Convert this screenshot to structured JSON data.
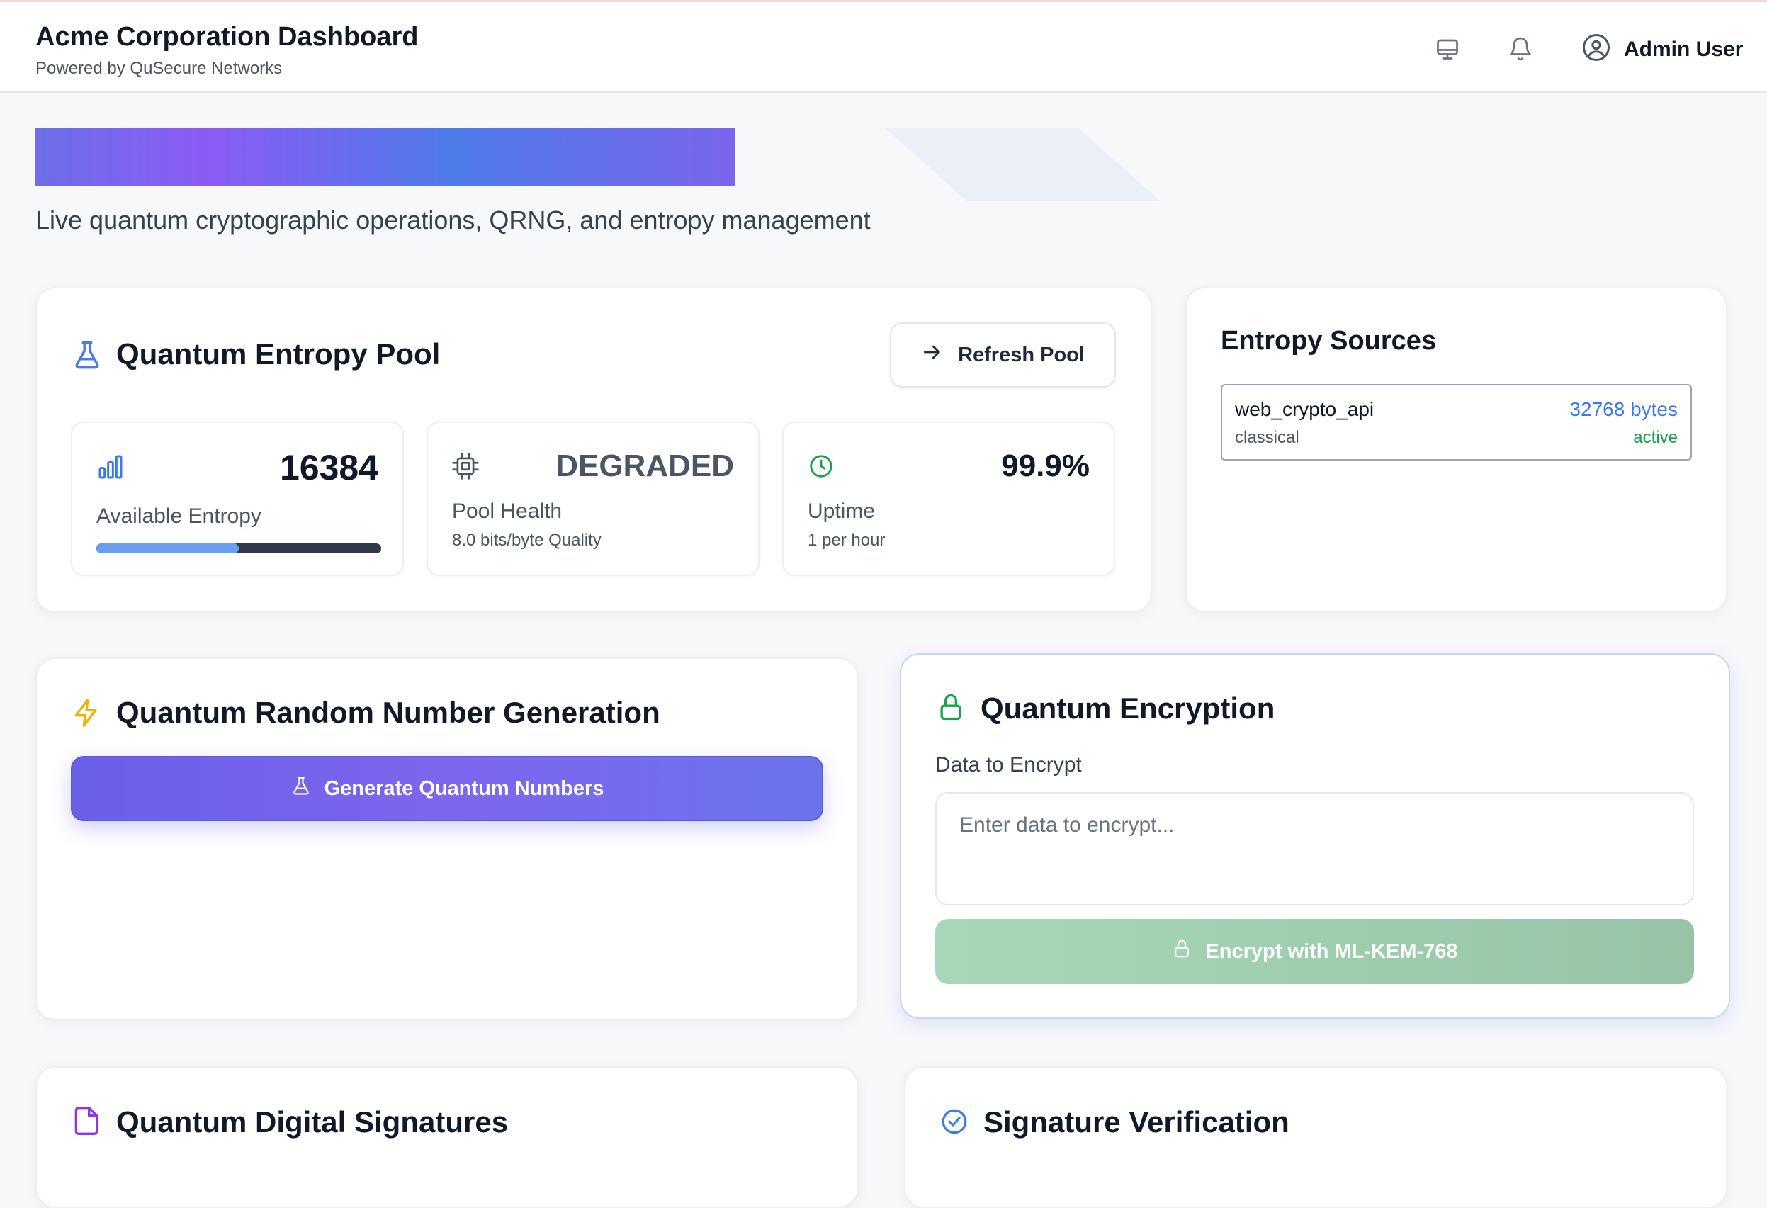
{
  "header": {
    "title": "Acme Corporation Dashboard",
    "subtitle": "Powered by QuSecure Networks",
    "user_name": "Admin User",
    "icons": [
      "monitor-icon",
      "bell-icon",
      "user-circle-icon"
    ]
  },
  "hero": {
    "subtitle": "Live quantum cryptographic operations, QRNG, and entropy management"
  },
  "entropy_pool": {
    "title": "Quantum Entropy Pool",
    "refresh_label": "Refresh Pool",
    "available": {
      "value": "16384",
      "label": "Available Entropy",
      "progress": 0.5
    },
    "health": {
      "value": "DEGRADED",
      "label": "Pool Health",
      "sub": "8.0 bits/byte Quality"
    },
    "uptime": {
      "value": "99.9%",
      "label": "Uptime",
      "sub": "1 per hour"
    }
  },
  "entropy_sources": {
    "title": "Entropy Sources",
    "items": [
      {
        "name": "web_crypto_api",
        "type": "classical",
        "size": "32768 bytes",
        "status": "active"
      }
    ]
  },
  "qrng": {
    "title": "Quantum Random Number Generation",
    "button_label": "Generate Quantum Numbers"
  },
  "encryption": {
    "title": "Quantum Encryption",
    "field_label": "Data to Encrypt",
    "placeholder": "Enter data to encrypt...",
    "button_label": "Encrypt with ML-KEM-768"
  },
  "signatures": {
    "title": "Quantum Digital Signatures"
  },
  "verification": {
    "title": "Signature Verification"
  },
  "colors": {
    "accent": "#6366f1",
    "blue": "#3b7ae8",
    "green": "#16a34a",
    "encrypt_button": "#a6d8b7"
  }
}
